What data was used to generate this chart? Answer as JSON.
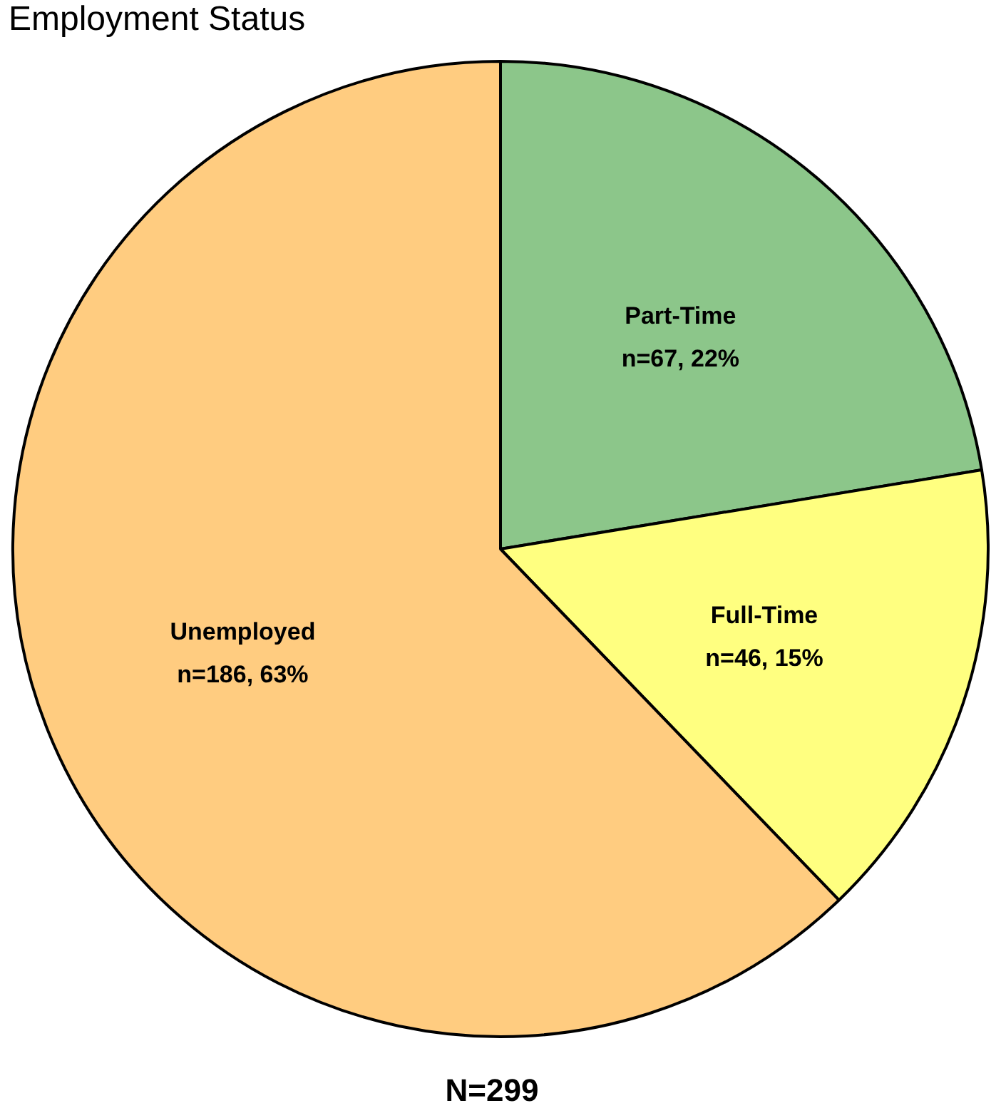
{
  "chart_data": {
    "type": "pie",
    "title": "Employment Status",
    "categories": [
      "Part-Time",
      "Full-Time",
      "Unemployed"
    ],
    "values": [
      67,
      46,
      186
    ],
    "value_labels": [
      "n=67, 22%",
      "n=46, 15%",
      "n=186, 63%"
    ],
    "colors": [
      "#8cc68a",
      "#ffff80",
      "#ffcc80"
    ],
    "annotations": [
      "N=299"
    ],
    "legend": false
  }
}
